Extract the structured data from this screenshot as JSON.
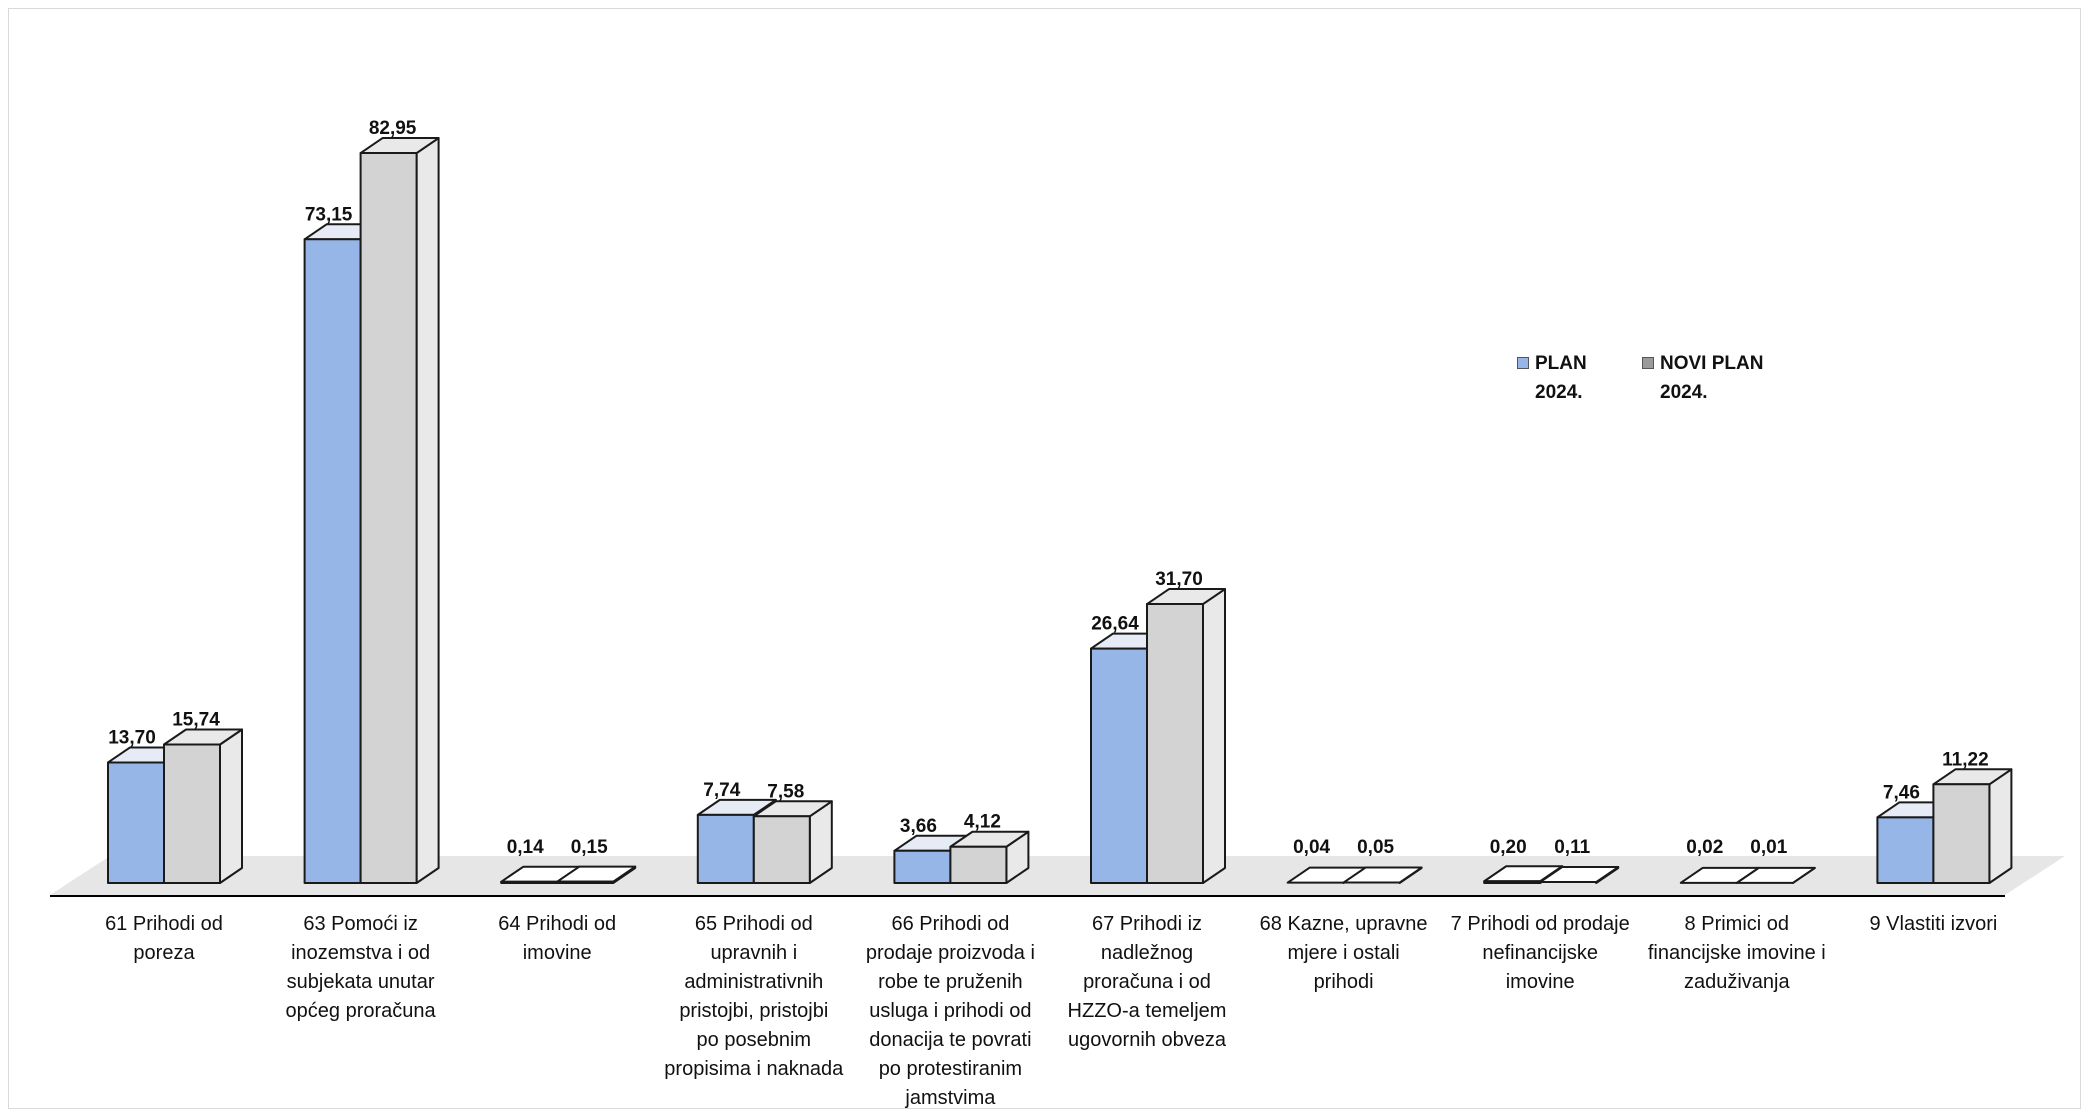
{
  "chart_data": {
    "type": "bar",
    "categories": [
      "61 Prihodi od\nporeza",
      "63 Pomoći iz\ninozemstva i od\nsubjekata unutar\nopćeg proračuna",
      "64 Prihodi od\nimovine",
      "65 Prihodi od\nupravnih i\nadministrativnih\npristojbi, pristojbi\npo posebnim\npropisima i naknada",
      "66 Prihodi od\nprodaje proizvoda i\nrobe te pruženih\nusluga i prihodi od\ndonacija te povrati\npo protestiranim\njamstvima",
      "67 Prihodi iz\nnadležnog\nproračuna i od\nHZZO-a temeljem\nugovornih obveza",
      "68 Kazne, upravne\nmjere i ostali\nprihodi",
      "7 Prihodi od prodaje\nnefinancijske\nimovine",
      "8 Primici od\nfinancijske imovine i\nzaduživanja",
      "9 Vlastiti izvori"
    ],
    "series": [
      {
        "name": "PLAN\n2024.",
        "values": [
          13.7,
          73.15,
          0.14,
          7.74,
          3.66,
          26.64,
          0.04,
          0.2,
          0.02,
          7.46
        ],
        "labels": [
          "13,70",
          "73,15",
          "0,14",
          "7,74",
          "3,66",
          "26,64",
          "0,04",
          "0,20",
          "0,02",
          "7,46"
        ]
      },
      {
        "name": "NOVI PLAN\n2024.",
        "values": [
          15.74,
          82.95,
          0.15,
          7.58,
          4.12,
          31.7,
          0.05,
          0.11,
          0.01,
          11.22
        ],
        "labels": [
          "15,74",
          "82,95",
          "0,15",
          "7,58",
          "4,12",
          "31,70",
          "0,05",
          "0,11",
          "0,01",
          "11,22"
        ]
      }
    ],
    "ylim": [
      0,
      85
    ],
    "grid": false,
    "legend_position": "right",
    "colors": {
      "plan_front": "#97b6e8",
      "plan_side": "#e6ebf5",
      "novi_front": "#d3d3d3",
      "novi_side": "#e9e9e9",
      "floor": "#e6e6e6"
    }
  }
}
